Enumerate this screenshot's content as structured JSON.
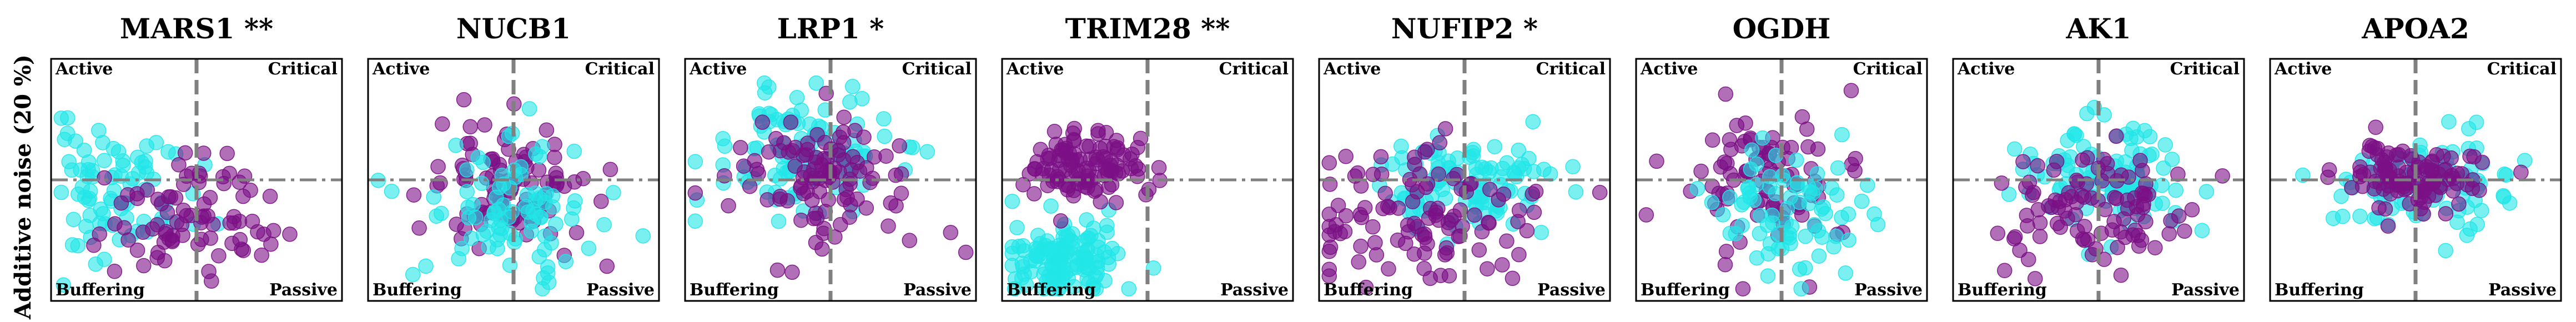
{
  "figure": {
    "ylabel": "Additive noise (20 %)",
    "quadrant_labels": {
      "top_left": "Active",
      "top_right": "Critical",
      "bottom_left": "Buffering",
      "bottom_right": "Passive"
    }
  },
  "colors": {
    "cyan": "#22e6e8",
    "purple": "#7b0f85",
    "reference_line": "#808080"
  },
  "chart_data": [
    {
      "type": "scatter",
      "title": "MARS1 **",
      "xlim": [
        -1,
        1
      ],
      "ylim": [
        -1,
        1
      ],
      "grid": false,
      "reference_lines": {
        "x": 0,
        "y": 0
      },
      "series": [
        {
          "color": "cyan",
          "cx": -0.55,
          "cy": -0.1,
          "sx": 0.26,
          "sy": 0.27,
          "n": 80,
          "seed": 11
        },
        {
          "color": "purple",
          "cx": -0.05,
          "cy": -0.3,
          "sx": 0.3,
          "sy": 0.22,
          "n": 85,
          "seed": 12
        }
      ]
    },
    {
      "type": "scatter",
      "title": "NUCB1",
      "xlim": [
        -1,
        1
      ],
      "ylim": [
        -1,
        1
      ],
      "grid": false,
      "reference_lines": {
        "x": 0,
        "y": 0
      },
      "series": [
        {
          "color": "purple",
          "cx": -0.05,
          "cy": -0.05,
          "sx": 0.28,
          "sy": 0.27,
          "n": 100,
          "seed": 21
        },
        {
          "color": "cyan",
          "cx": -0.05,
          "cy": -0.2,
          "sx": 0.3,
          "sy": 0.28,
          "n": 90,
          "seed": 22
        }
      ]
    },
    {
      "type": "scatter",
      "title": "LRP1 *",
      "xlim": [
        -1,
        1
      ],
      "ylim": [
        -1,
        1
      ],
      "grid": false,
      "reference_lines": {
        "x": 0,
        "y": 0
      },
      "series": [
        {
          "color": "cyan",
          "cx": -0.2,
          "cy": 0.25,
          "sx": 0.3,
          "sy": 0.25,
          "n": 110,
          "seed": 31
        },
        {
          "color": "purple",
          "cx": -0.05,
          "cy": 0.05,
          "sx": 0.3,
          "sy": 0.28,
          "n": 110,
          "seed": 32
        }
      ]
    },
    {
      "type": "scatter",
      "title": "TRIM28 **",
      "xlim": [
        -1,
        1
      ],
      "ylim": [
        -1,
        1
      ],
      "grid": false,
      "reference_lines": {
        "x": 0,
        "y": 0
      },
      "series": [
        {
          "color": "cyan",
          "cx": -0.55,
          "cy": -0.65,
          "sx": 0.18,
          "sy": 0.17,
          "n": 130,
          "seed": 41
        },
        {
          "color": "purple",
          "cx": -0.45,
          "cy": 0.12,
          "sx": 0.22,
          "sy": 0.14,
          "n": 110,
          "seed": 42
        }
      ]
    },
    {
      "type": "scatter",
      "title": "NUFIP2 *",
      "xlim": [
        -1,
        1
      ],
      "ylim": [
        -1,
        1
      ],
      "grid": false,
      "reference_lines": {
        "x": 0,
        "y": 0
      },
      "series": [
        {
          "color": "cyan",
          "cx": -0.05,
          "cy": -0.05,
          "sx": 0.28,
          "sy": 0.2,
          "n": 110,
          "seed": 51
        },
        {
          "color": "purple",
          "cx": -0.2,
          "cy": -0.3,
          "sx": 0.38,
          "sy": 0.3,
          "n": 110,
          "seed": 52
        }
      ]
    },
    {
      "type": "scatter",
      "title": "OGDH",
      "xlim": [
        -1,
        1
      ],
      "ylim": [
        -1,
        1
      ],
      "grid": false,
      "reference_lines": {
        "x": 0,
        "y": 0
      },
      "series": [
        {
          "color": "purple",
          "cx": -0.15,
          "cy": 0.05,
          "sx": 0.35,
          "sy": 0.3,
          "n": 90,
          "seed": 61
        },
        {
          "color": "cyan",
          "cx": 0.05,
          "cy": -0.25,
          "sx": 0.3,
          "sy": 0.3,
          "n": 80,
          "seed": 62
        }
      ]
    },
    {
      "type": "scatter",
      "title": "AK1",
      "xlim": [
        -1,
        1
      ],
      "ylim": [
        -1,
        1
      ],
      "grid": false,
      "reference_lines": {
        "x": 0,
        "y": 0
      },
      "series": [
        {
          "color": "cyan",
          "cx": 0.05,
          "cy": 0.05,
          "sx": 0.3,
          "sy": 0.22,
          "n": 100,
          "seed": 71
        },
        {
          "color": "purple",
          "cx": -0.05,
          "cy": -0.25,
          "sx": 0.35,
          "sy": 0.28,
          "n": 100,
          "seed": 72
        }
      ]
    },
    {
      "type": "scatter",
      "title": "APOA2",
      "xlim": [
        -1,
        1
      ],
      "ylim": [
        -1,
        1
      ],
      "grid": false,
      "reference_lines": {
        "x": 0,
        "y": 0
      },
      "series": [
        {
          "color": "cyan",
          "cx": 0.05,
          "cy": 0.0,
          "sx": 0.28,
          "sy": 0.2,
          "n": 100,
          "seed": 81
        },
        {
          "color": "purple",
          "cx": -0.05,
          "cy": 0.02,
          "sx": 0.25,
          "sy": 0.16,
          "n": 110,
          "seed": 82
        }
      ]
    }
  ]
}
